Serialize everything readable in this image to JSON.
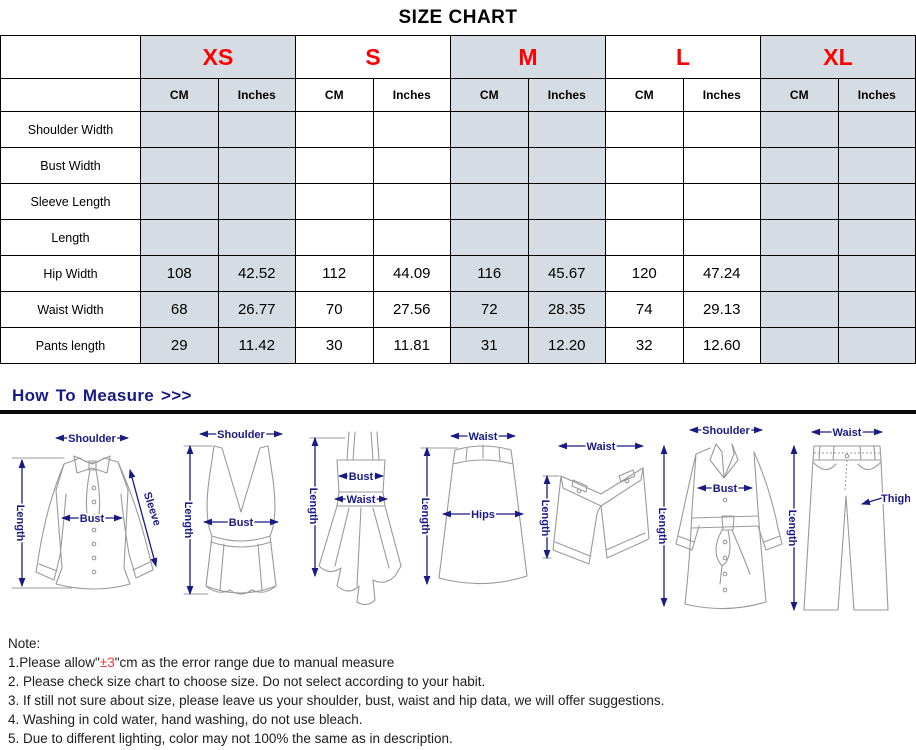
{
  "title": "SIZE CHART",
  "colors": {
    "accent_red": "#ff0000",
    "note_red": "#e8413c",
    "navy": "#1a1a85",
    "shade": "#d6dce4",
    "border": "#000000"
  },
  "table": {
    "sizes": [
      {
        "label": "XS",
        "shaded": true
      },
      {
        "label": "S",
        "shaded": false
      },
      {
        "label": "M",
        "shaded": true
      },
      {
        "label": "L",
        "shaded": false
      },
      {
        "label": "XL",
        "shaded": true
      }
    ],
    "unit_headers": [
      "CM",
      "Inches"
    ],
    "rows": [
      {
        "label": "Shoulder Width",
        "values": [
          "",
          "",
          "",
          "",
          "",
          "",
          "",
          "",
          "",
          ""
        ]
      },
      {
        "label": "Bust Width",
        "values": [
          "",
          "",
          "",
          "",
          "",
          "",
          "",
          "",
          "",
          ""
        ]
      },
      {
        "label": "Sleeve Length",
        "values": [
          "",
          "",
          "",
          "",
          "",
          "",
          "",
          "",
          "",
          ""
        ]
      },
      {
        "label": "Length",
        "values": [
          "",
          "",
          "",
          "",
          "",
          "",
          "",
          "",
          "",
          ""
        ]
      },
      {
        "label": "Hip Width",
        "values": [
          "108",
          "42.52",
          "112",
          "44.09",
          "116",
          "45.67",
          "120",
          "47.24",
          "",
          ""
        ]
      },
      {
        "label": "Waist Width",
        "values": [
          "68",
          "26.77",
          "70",
          "27.56",
          "72",
          "28.35",
          "74",
          "29.13",
          "",
          ""
        ]
      },
      {
        "label": "Pants length",
        "values": [
          "29",
          "11.42",
          "30",
          "11.81",
          "31",
          "12.20",
          "32",
          "12.60",
          "",
          ""
        ]
      }
    ]
  },
  "measure": {
    "heading": "How To Measure >>>",
    "diagrams": [
      {
        "name": "blouse",
        "labels": [
          "Shoulder",
          "Bust",
          "Sleeve",
          "Length"
        ]
      },
      {
        "name": "tank-top",
        "labels": [
          "Shoulder",
          "Bust",
          "Length"
        ]
      },
      {
        "name": "dress",
        "labels": [
          "Bust",
          "Waist",
          "Length"
        ]
      },
      {
        "name": "skirt",
        "labels": [
          "Waist",
          "Hips",
          "Length"
        ]
      },
      {
        "name": "shorts",
        "labels": [
          "Waist",
          "Length"
        ]
      },
      {
        "name": "coat",
        "labels": [
          "Shoulder",
          "Bust",
          "Length"
        ]
      },
      {
        "name": "jeans",
        "labels": [
          "Waist",
          "Thigh",
          "Length"
        ]
      }
    ]
  },
  "notes": {
    "heading": "Note:",
    "line1_prefix": "1.Please allow\"",
    "line1_red": "±3",
    "line1_suffix": "\"cm as the error range due to manual measure",
    "items": [
      "2. Please check size chart to choose size. Do not select according to your habit.",
      "3. If still not sure about size, please leave us your shoulder, bust, waist and hip data, we will offer suggestions.",
      "4. Washing in cold water, hand washing, do not use bleach.",
      "5. Due to different lighting, color may not 100% the same as in description."
    ]
  }
}
